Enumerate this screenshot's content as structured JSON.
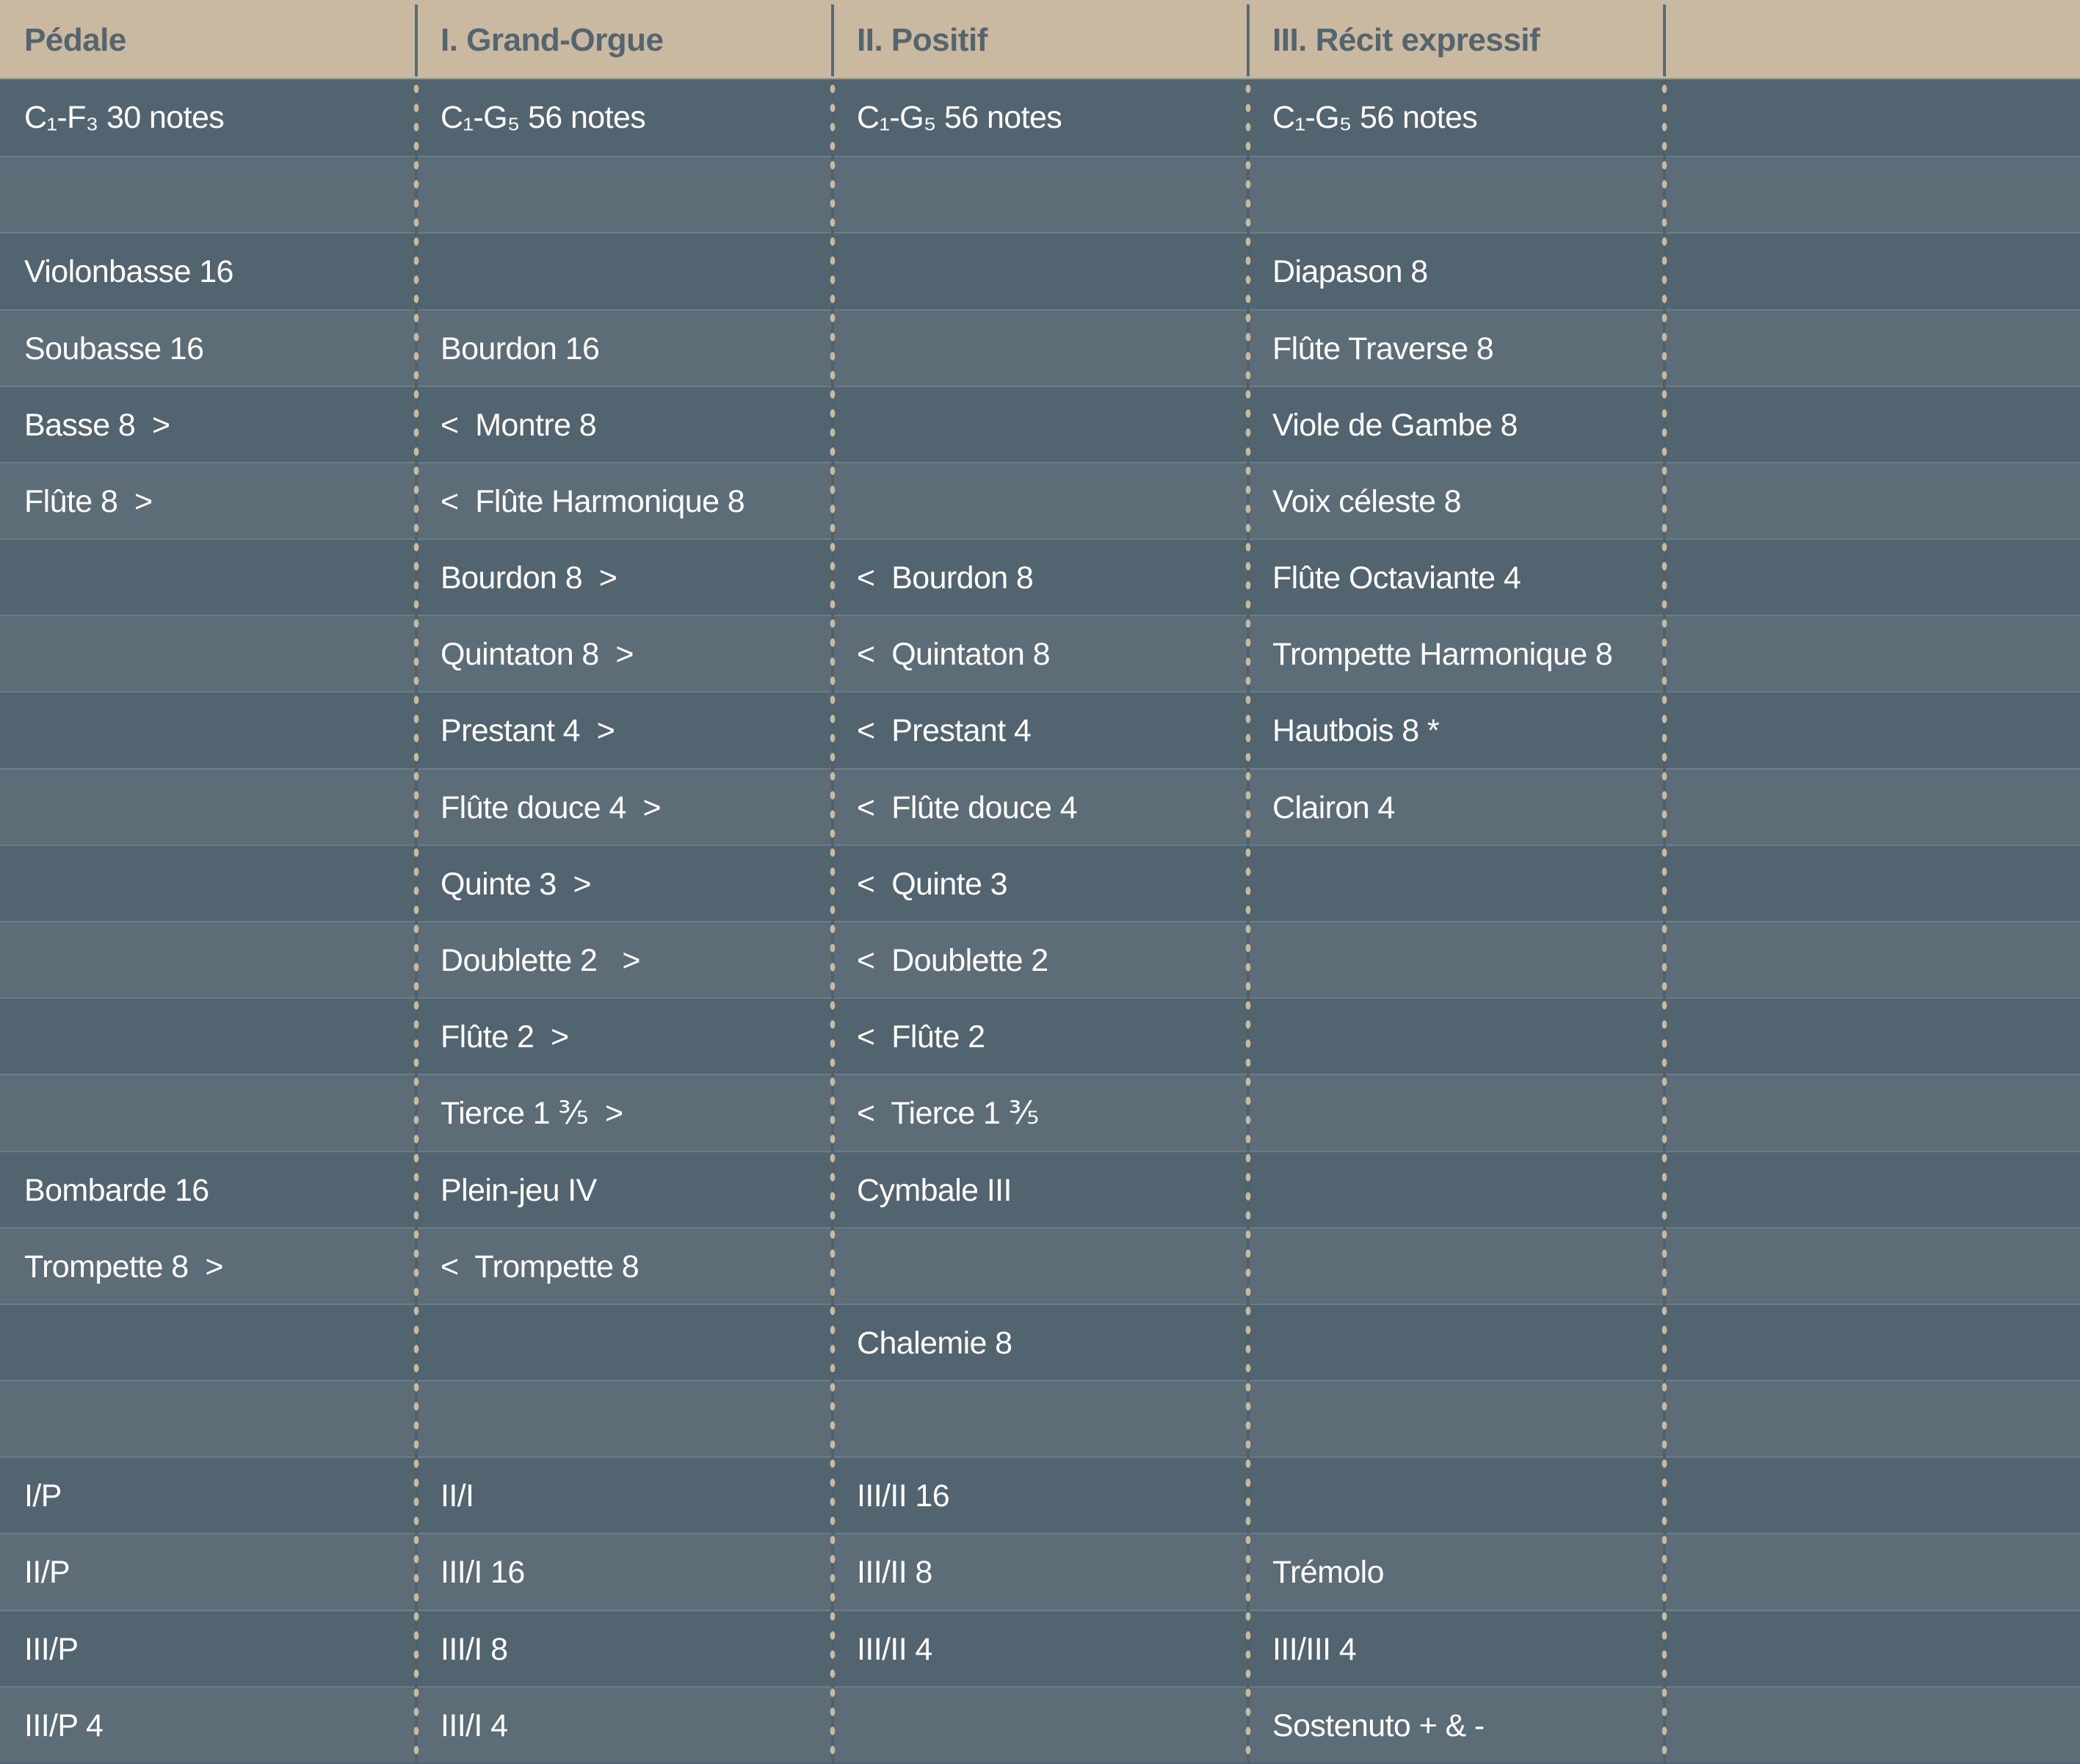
{
  "colors": {
    "header_bg": "#c9b9a0",
    "header_text": "#546570",
    "row_dark": "#52646f",
    "row_light": "#5c6d78",
    "dots": "#cbb99b",
    "text": "#ffffff"
  },
  "headers": [
    "Pédale",
    "I. Grand-Orgue",
    "II. Positif",
    "III. Récit expressif",
    ""
  ],
  "rows": [
    [
      "C₁-F₃ 30 notes",
      "C₁-G₅ 56 notes",
      "C₁-G₅ 56 notes",
      "C₁-G₅ 56 notes",
      ""
    ],
    [
      "",
      "",
      "",
      "",
      ""
    ],
    [
      "Violonbasse 16",
      "",
      "",
      "Diapason 8",
      ""
    ],
    [
      "Soubasse 16",
      "Bourdon 16",
      "",
      "Flûte Traverse 8",
      ""
    ],
    [
      "Basse 8  >",
      "<  Montre 8",
      "",
      "Viole de Gambe 8",
      ""
    ],
    [
      "Flûte 8  >",
      "<  Flûte Harmonique 8",
      "",
      "Voix céleste 8",
      ""
    ],
    [
      "",
      "Bourdon 8  >",
      "<  Bourdon 8",
      "Flûte Octaviante 4",
      ""
    ],
    [
      "",
      "Quintaton 8  >",
      "<  Quintaton 8",
      "Trompette Harmonique 8",
      ""
    ],
    [
      "",
      "Prestant 4  >",
      "<  Prestant 4",
      "Hautbois 8 *",
      ""
    ],
    [
      "",
      "Flûte douce 4  >",
      "<  Flûte douce 4",
      "Clairon 4",
      ""
    ],
    [
      "",
      "Quinte 3  >",
      "<  Quinte 3",
      "",
      ""
    ],
    [
      "",
      "Doublette 2   >",
      "<  Doublette 2",
      "",
      ""
    ],
    [
      "",
      "Flûte 2  >",
      "<  Flûte 2",
      "",
      ""
    ],
    [
      "",
      "Tierce 1 ⅗  >",
      "<  Tierce 1 ⅗",
      "",
      ""
    ],
    [
      "Bombarde 16",
      "Plein-jeu IV",
      "Cymbale III",
      "",
      ""
    ],
    [
      "Trompette 8  >",
      "<  Trompette 8",
      "",
      "",
      ""
    ],
    [
      "",
      "",
      "Chalemie 8",
      "",
      ""
    ],
    [
      "",
      "",
      "",
      "",
      ""
    ],
    [
      "I/P",
      "II/I",
      "III/II 16",
      "",
      ""
    ],
    [
      "II/P",
      "III/I 16",
      "III/II 8",
      "Trémolo",
      ""
    ],
    [
      "III/P",
      "III/I 8",
      "III/II 4",
      "III/III 4",
      ""
    ],
    [
      "III/P 4",
      "III/I 4",
      "",
      "Sostenuto + & -",
      ""
    ]
  ]
}
